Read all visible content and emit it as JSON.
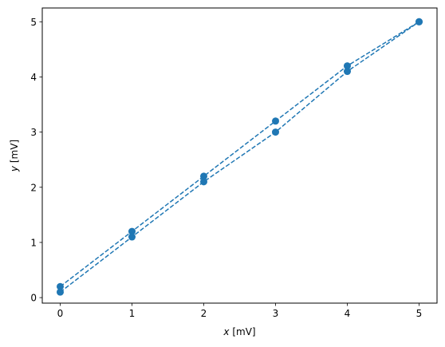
{
  "chart_data": {
    "type": "line",
    "title": "",
    "xlabel_var": "x",
    "xlabel_unit": " [mV]",
    "ylabel_var": "y",
    "ylabel_unit": " [mV]",
    "xlim": [
      -0.25,
      5.25
    ],
    "ylim": [
      -0.1,
      5.25
    ],
    "xticks": [
      0,
      1,
      2,
      3,
      4,
      5
    ],
    "yticks": [
      0,
      1,
      2,
      3,
      4,
      5
    ],
    "grid": false,
    "legend": false,
    "line_style": "dashed",
    "marker": "circle",
    "color": "#1f77b4",
    "series": [
      {
        "x": [
          0,
          1,
          2,
          3,
          4,
          5
        ],
        "y": [
          0.2,
          1.2,
          2.2,
          3.2,
          4.2,
          5.0
        ]
      },
      {
        "x": [
          0,
          1,
          2,
          3,
          4,
          5
        ],
        "y": [
          0.1,
          1.1,
          2.1,
          3.0,
          4.1,
          5.0
        ]
      }
    ]
  }
}
